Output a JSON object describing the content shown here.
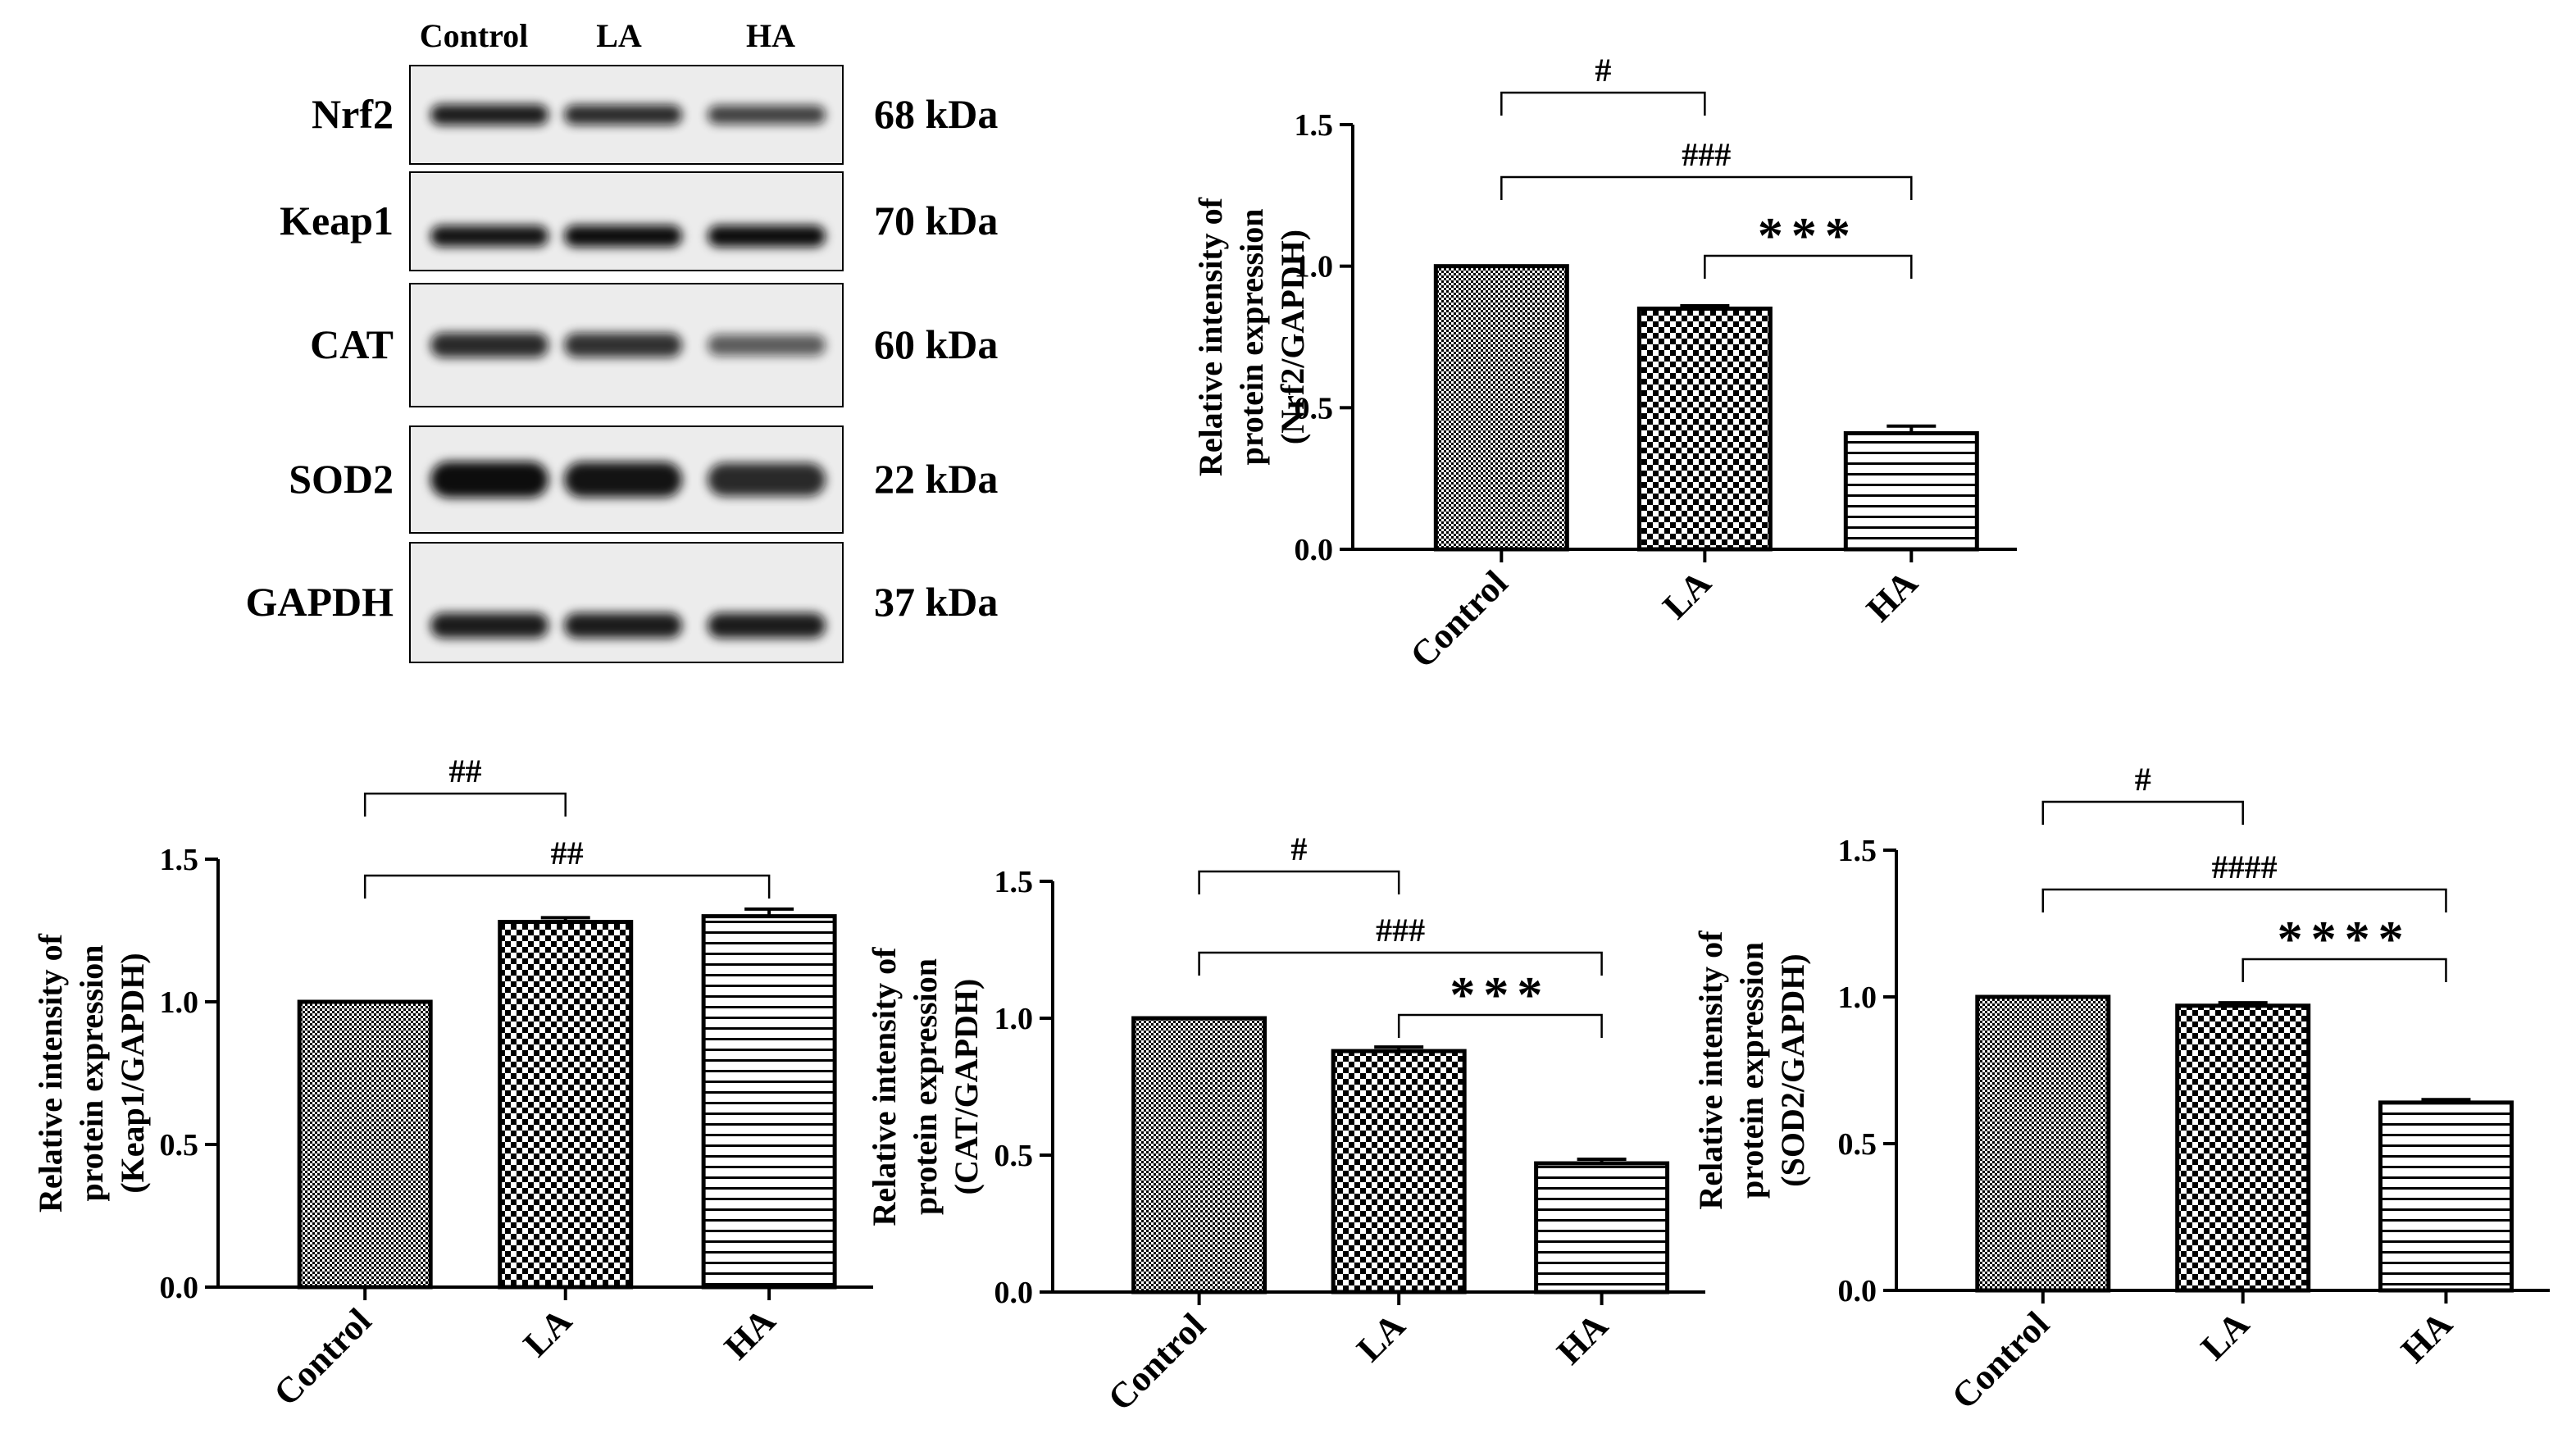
{
  "western_blot": {
    "lane_labels": [
      "Control",
      "LA",
      "HA"
    ],
    "rows": [
      {
        "protein": "Nrf2",
        "size": "68 kDa",
        "band_intensity": [
          0.9,
          0.8,
          0.65
        ]
      },
      {
        "protein": "Keap1",
        "size": "70 kDa",
        "band_intensity": [
          0.95,
          1.0,
          1.0
        ]
      },
      {
        "protein": "CAT",
        "size": "60 kDa",
        "band_intensity": [
          0.8,
          0.75,
          0.45
        ]
      },
      {
        "protein": "SOD2",
        "size": "22 kDa",
        "band_intensity": [
          1.0,
          0.95,
          0.8
        ]
      },
      {
        "protein": "GAPDH",
        "size": "37 kDa",
        "band_intensity": [
          0.9,
          0.9,
          0.9
        ]
      }
    ]
  },
  "colors": {
    "bar_outline": "#000000",
    "band": "#0d0d0d",
    "blot_bg": "#ececec"
  },
  "chart_data": [
    {
      "type": "bar",
      "categories": [
        "Control",
        "LA",
        "HA"
      ],
      "values": [
        1.0,
        0.85,
        0.41
      ],
      "errors": [
        0.0,
        0.01,
        0.025
      ],
      "ylabel_lines": [
        "Relative intensity of",
        "protein expression",
        "(Nrf2/GAPDH)"
      ],
      "yticks": [
        "0.0",
        "0.5",
        "1.0",
        "1.5"
      ],
      "ylim": [
        0,
        1.5
      ],
      "patterns": [
        "fine-check",
        "coarse-check",
        "horizontal-lines"
      ],
      "brackets": [
        {
          "from": 0,
          "to": 1,
          "label": "#"
        },
        {
          "from": 0,
          "to": 2,
          "label": "###"
        },
        {
          "from": 1,
          "to": 2,
          "label": "***"
        }
      ]
    },
    {
      "type": "bar",
      "categories": [
        "Control",
        "LA",
        "HA"
      ],
      "values": [
        1.0,
        1.28,
        1.3
      ],
      "errors": [
        0.0,
        0.015,
        0.025
      ],
      "ylabel_lines": [
        "Relative intensity of",
        "protein expression",
        "(Keap1/GAPDH)"
      ],
      "yticks": [
        "0.0",
        "0.5",
        "1.0",
        "1.5"
      ],
      "ylim": [
        0,
        1.5
      ],
      "patterns": [
        "fine-check",
        "coarse-check",
        "horizontal-lines"
      ],
      "brackets": [
        {
          "from": 0,
          "to": 1,
          "label": "##"
        },
        {
          "from": 0,
          "to": 2,
          "label": "##"
        }
      ]
    },
    {
      "type": "bar",
      "categories": [
        "Control",
        "LA",
        "HA"
      ],
      "values": [
        1.0,
        0.88,
        0.47
      ],
      "errors": [
        0.0,
        0.015,
        0.015
      ],
      "ylabel_lines": [
        "Relative intensity of",
        "protein expression",
        "(CAT/GAPDH)"
      ],
      "yticks": [
        "0.0",
        "0.5",
        "1.0",
        "1.5"
      ],
      "ylim": [
        0,
        1.5
      ],
      "patterns": [
        "fine-check",
        "coarse-check",
        "horizontal-lines"
      ],
      "brackets": [
        {
          "from": 0,
          "to": 1,
          "label": "#"
        },
        {
          "from": 0,
          "to": 2,
          "label": "###"
        },
        {
          "from": 1,
          "to": 2,
          "label": "***"
        }
      ]
    },
    {
      "type": "bar",
      "categories": [
        "Control",
        "LA",
        "HA"
      ],
      "values": [
        1.0,
        0.97,
        0.64
      ],
      "errors": [
        0.0,
        0.01,
        0.01
      ],
      "ylabel_lines": [
        "Relative intensity of",
        "protein expression",
        "(SOD2/GAPDH)"
      ],
      "yticks": [
        "0.0",
        "0.5",
        "1.0",
        "1.5"
      ],
      "ylim": [
        0,
        1.5
      ],
      "patterns": [
        "fine-check",
        "coarse-check",
        "horizontal-lines"
      ],
      "brackets": [
        {
          "from": 0,
          "to": 1,
          "label": "#"
        },
        {
          "from": 0,
          "to": 2,
          "label": "####"
        },
        {
          "from": 1,
          "to": 2,
          "label": "****"
        }
      ]
    }
  ]
}
